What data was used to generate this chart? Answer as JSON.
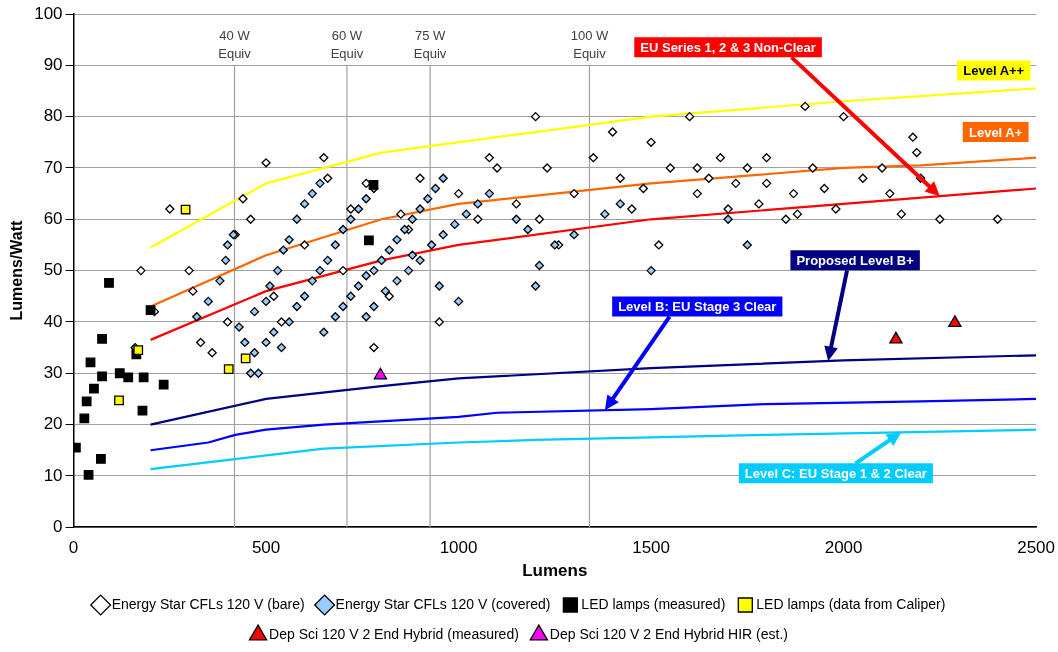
{
  "chart_data": {
    "type": "scatter",
    "xlabel": "Lumens",
    "ylabel": "Lumens/Watt",
    "xlim": [
      0,
      2500
    ],
    "xticks": [
      0,
      500,
      1000,
      1500,
      2000,
      2500
    ],
    "ylim": [
      0,
      100
    ],
    "yticks": [
      0,
      10,
      20,
      30,
      40,
      50,
      60,
      70,
      80,
      90,
      100
    ],
    "grid": "y",
    "legend": "bottom",
    "ref_lines": [
      {
        "axis": "x",
        "value": 418,
        "label": "40 W Equiv",
        "color": "#a0a0a0"
      },
      {
        "axis": "x",
        "value": 710,
        "label": "60 W Equiv",
        "color": "#a0a0a0"
      },
      {
        "axis": "x",
        "value": 926,
        "label": "75 W Equiv",
        "color": "#a0a0a0"
      },
      {
        "axis": "x",
        "value": 1340,
        "label": "100 W Equiv",
        "color": "#a0a0a0"
      }
    ],
    "series": [
      {
        "name": "Energy Star CFLs 120 V (bare)",
        "type": "scatter",
        "marker": "diamond",
        "color": "#ffffff",
        "x": [
          175,
          210,
          250,
          300,
          310,
          330,
          360,
          400,
          420,
          440,
          460,
          500,
          520,
          540,
          600,
          650,
          660,
          700,
          720,
          760,
          780,
          800,
          820,
          850,
          870,
          900,
          950,
          1000,
          1050,
          1080,
          1100,
          1150,
          1200,
          1210,
          1230,
          1260,
          1300,
          1350,
          1400,
          1420,
          1450,
          1480,
          1500,
          1520,
          1550,
          1600,
          1620,
          1650,
          1680,
          1700,
          1720,
          1750,
          1780,
          1800,
          1850,
          1870,
          1900,
          1920,
          1950,
          1980,
          2000,
          2050,
          2100,
          2120,
          2150,
          2180,
          2190,
          2200,
          2250,
          2400,
          1800,
          1620,
          1880
        ],
        "values": [
          50,
          42,
          62,
          50,
          46,
          36,
          34,
          40,
          57,
          64,
          60,
          71,
          45,
          40,
          55,
          72,
          68,
          50,
          62,
          67,
          35,
          52,
          45,
          61,
          58,
          68,
          40,
          65,
          60,
          72,
          70,
          63,
          80,
          60,
          70,
          55,
          65,
          72,
          77,
          68,
          62,
          66,
          75,
          55,
          70,
          80,
          65,
          68,
          72,
          62,
          67,
          70,
          63,
          72,
          60,
          65,
          82,
          70,
          66,
          62,
          80,
          68,
          70,
          65,
          61,
          76,
          73,
          68,
          60,
          60,
          67,
          70,
          61
        ]
      },
      {
        "name": "Energy Star CFLs 120 V (covered)",
        "type": "scatter",
        "marker": "diamond",
        "color": "#99ccff",
        "x": [
          160,
          320,
          350,
          380,
          395,
          400,
          415,
          430,
          445,
          460,
          480,
          470,
          500,
          510,
          530,
          545,
          560,
          580,
          600,
          620,
          640,
          470,
          500,
          520,
          540,
          560,
          580,
          600,
          620,
          640,
          660,
          680,
          700,
          720,
          740,
          760,
          780,
          650,
          680,
          700,
          720,
          740,
          760,
          780,
          800,
          820,
          840,
          860,
          880,
          900,
          920,
          940,
          960,
          760,
          780,
          810,
          840,
          870,
          900,
          930,
          960,
          990,
          1020,
          1050,
          1080,
          880,
          950,
          1000,
          1200,
          1210,
          1250,
          1300,
          1380,
          1420,
          1500,
          1700,
          1750,
          1150,
          1180
        ],
        "values": [
          35,
          41,
          44,
          48,
          52,
          55,
          57,
          39,
          36,
          30,
          30,
          42,
          44,
          47,
          50,
          54,
          56,
          60,
          63,
          65,
          67,
          34,
          36,
          38,
          35,
          40,
          43,
          45,
          48,
          50,
          52,
          55,
          58,
          60,
          62,
          64,
          66,
          38,
          41,
          43,
          45,
          47,
          49,
          50,
          52,
          54,
          56,
          58,
          60,
          62,
          64,
          66,
          68,
          41,
          43,
          46,
          48,
          50,
          52,
          55,
          57,
          59,
          61,
          63,
          65,
          53,
          47,
          44,
          47,
          51,
          55,
          57,
          61,
          63,
          50,
          60,
          55,
          60,
          58
        ]
      },
      {
        "name": "LED lamps (measured)",
        "type": "scatter",
        "marker": "square",
        "color": "#000000",
        "x": [
          6,
          39,
          71,
          28,
          34,
          53,
          44,
          74,
          74,
          120,
          142,
          182,
          179,
          163,
          234,
          92,
          200,
          779,
          767
        ],
        "values": [
          15.5,
          10.2,
          13.3,
          21.2,
          24.5,
          27,
          32.1,
          36.7,
          29.4,
          30,
          29.2,
          29.2,
          22.7,
          33.7,
          27.8,
          47.6,
          42.3,
          66.7,
          55.9
        ]
      },
      {
        "name": "LED lamps (data from Caliper)",
        "type": "scatter",
        "marker": "square",
        "color": "#ffff00",
        "x": [
          291,
          168,
          118,
          403,
          447
        ],
        "values": [
          61.9,
          34.5,
          24.7,
          30.8,
          32.9
        ]
      },
      {
        "name": "Dep Sci 120 V 2 End Hybrid (measured)",
        "type": "scatter",
        "marker": "triangle",
        "color": "#ff0000",
        "x": [
          2136,
          2289
        ],
        "values": [
          36.6,
          39.8
        ]
      },
      {
        "name": "Dep Sci 120 V 2 End Hybrid HIR (est.)",
        "type": "scatter",
        "marker": "triangle",
        "color": "#ff00ff",
        "x": [
          797
        ],
        "values": [
          29.6
        ]
      },
      {
        "name": "Level A++",
        "type": "line",
        "marker": "none",
        "color": "#ffff00",
        "x": [
          200,
          500,
          800,
          1200,
          1500,
          2000,
          2500
        ],
        "values": [
          54.5,
          67,
          73,
          77,
          80,
          83,
          85.5
        ]
      },
      {
        "name": "Level A+",
        "type": "line",
        "marker": "none",
        "color": "#ff6600",
        "x": [
          200,
          500,
          800,
          1000,
          1500,
          2000,
          2200,
          2500
        ],
        "values": [
          43,
          53,
          60,
          63,
          67,
          70,
          70.5,
          72
        ]
      },
      {
        "name": "EU Series 1, 2 & 3 Non-Clear",
        "type": "line",
        "marker": "none",
        "color": "#ff0000",
        "x": [
          200,
          500,
          800,
          1000,
          1500,
          2000,
          2500
        ],
        "values": [
          36.5,
          46,
          52,
          55,
          60,
          63,
          66
        ]
      },
      {
        "name": "Proposed Level B+",
        "type": "line",
        "marker": "none",
        "color": "#000080",
        "x": [
          200,
          500,
          800,
          1000,
          1500,
          2000,
          2500
        ],
        "values": [
          20,
          25,
          27.5,
          29,
          31,
          32.5,
          33.5
        ]
      },
      {
        "name": "Level B: EU Stage 3 Clear",
        "type": "line",
        "marker": "none",
        "color": "#0000ff",
        "x": [
          200,
          350,
          420,
          500,
          650,
          1000,
          1100,
          1500,
          1800,
          2200,
          2500
        ],
        "values": [
          15,
          16.5,
          18,
          19,
          20,
          21.5,
          22.3,
          23,
          24,
          24.5,
          25
        ]
      },
      {
        "name": "Level C: EU Stage 1 & 2 Clear",
        "type": "line",
        "marker": "none",
        "color": "#00ccff",
        "x": [
          200,
          500,
          650,
          1000,
          1200,
          1800,
          2500
        ],
        "values": [
          11.3,
          14,
          15.3,
          16.5,
          17,
          18,
          19
        ]
      }
    ]
  }
}
